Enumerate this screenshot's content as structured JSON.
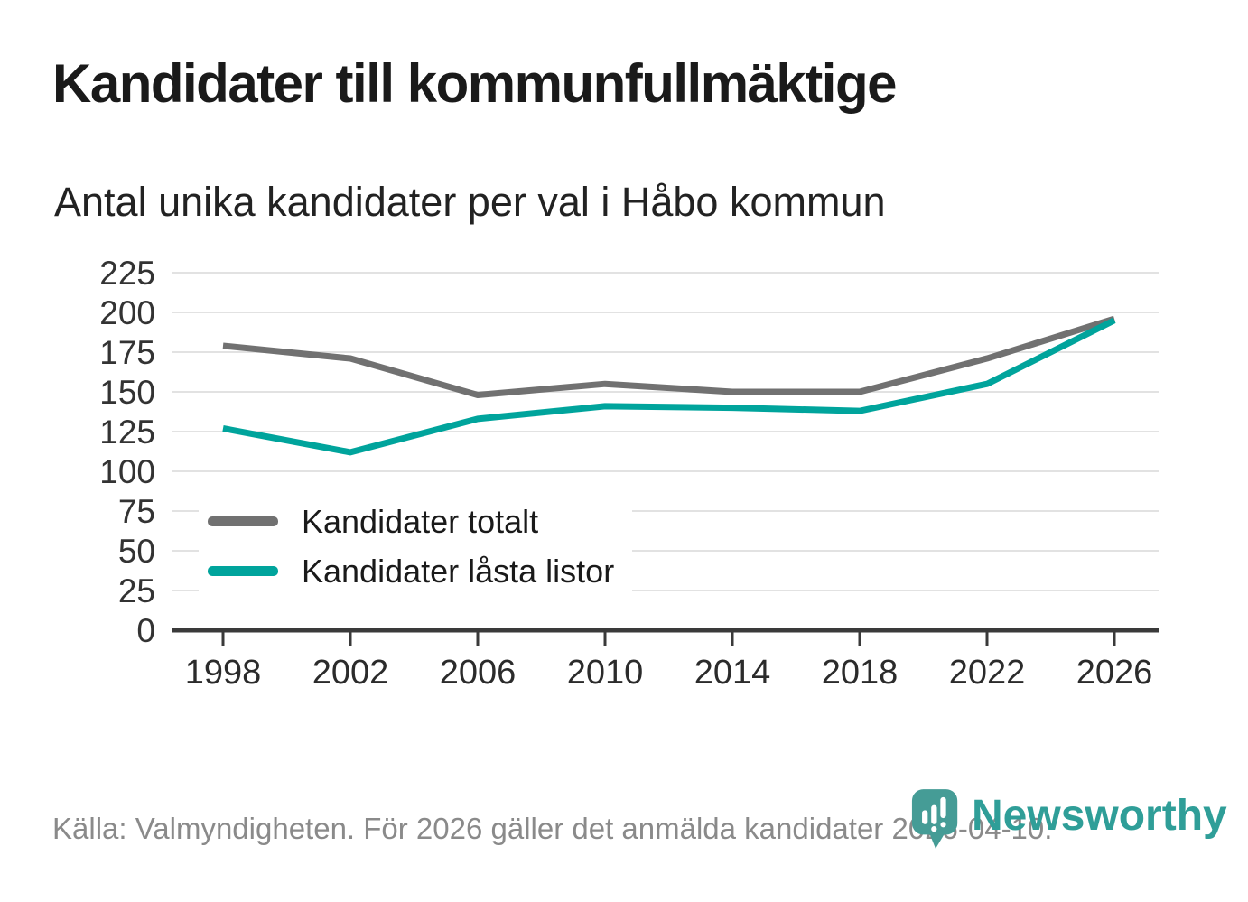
{
  "header": {
    "title": "Kandidater till kommunfullmäktige",
    "subtitle": "Antal unika kandidater per val i Håbo kommun"
  },
  "chart_data": {
    "type": "line",
    "categories": [
      "1998",
      "2002",
      "2006",
      "2010",
      "2014",
      "2018",
      "2022",
      "2026"
    ],
    "series": [
      {
        "name": "Kandidater totalt",
        "color": "#717171",
        "values": [
          179,
          171,
          148,
          155,
          150,
          150,
          171,
          196
        ]
      },
      {
        "name": "Kandidater låsta listor",
        "color": "#00a49c",
        "values": [
          127,
          112,
          133,
          141,
          140,
          138,
          155,
          195
        ]
      }
    ],
    "ylim": [
      0,
      225
    ],
    "y_ticks": [
      0,
      25,
      50,
      75,
      100,
      125,
      150,
      175,
      200,
      225
    ],
    "grid": "horizontal",
    "legend_position": "inside-lower-left"
  },
  "footer": {
    "source": "Källa: Valmyndigheten. För 2026 gäller det anmälda kandidater 2026-04-10.",
    "brand": "Newsworthy"
  },
  "colors": {
    "line_gray": "#717171",
    "accent_teal": "#00a49c",
    "brand_teal": "#459c96",
    "brand_text_teal": "#2f9e98",
    "grid": "#e2e2e2",
    "axis": "#3a3a3a",
    "tick_label": "#333333",
    "source_text": "#8a8a8a"
  }
}
